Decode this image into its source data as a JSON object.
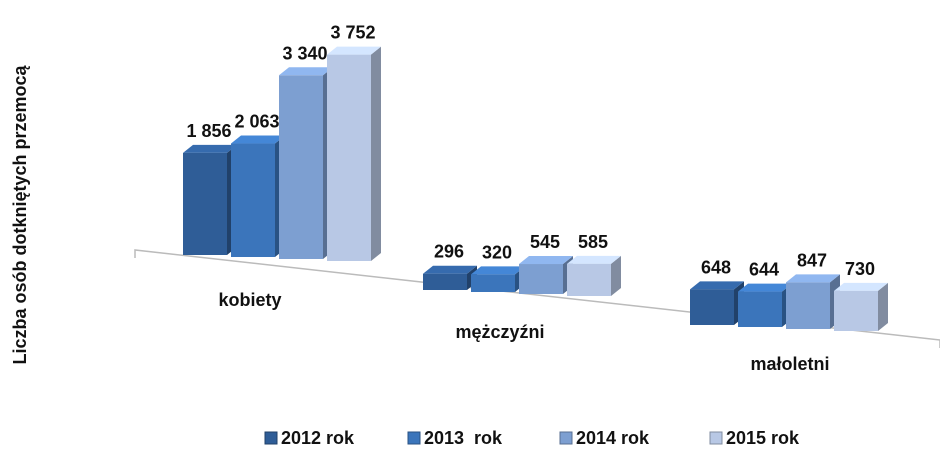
{
  "chart_data": {
    "type": "bar3d",
    "y_label": "Liczba osób dotkniętych przemocą",
    "categories": [
      "kobiety",
      "mężczyźni",
      "małoletni"
    ],
    "series": [
      {
        "name": "2012 rok",
        "color": "#2f5d97",
        "values": [
          1856,
          296,
          648
        ],
        "value_labels": [
          "1 856",
          "296",
          "648"
        ]
      },
      {
        "name": "2013  rok",
        "color": "#3b75bb",
        "values": [
          2063,
          320,
          644
        ],
        "value_labels": [
          "2 063",
          "320",
          "644"
        ]
      },
      {
        "name": "2014 rok",
        "color": "#7d9fd1",
        "values": [
          3340,
          545,
          847
        ],
        "value_labels": [
          "3 340",
          "545",
          "847"
        ]
      },
      {
        "name": "2015 rok",
        "color": "#b8c8e5",
        "values": [
          3752,
          585,
          730
        ],
        "value_labels": [
          "3 752",
          "585",
          "730"
        ]
      }
    ],
    "ylim": [
      0,
      4000
    ]
  }
}
